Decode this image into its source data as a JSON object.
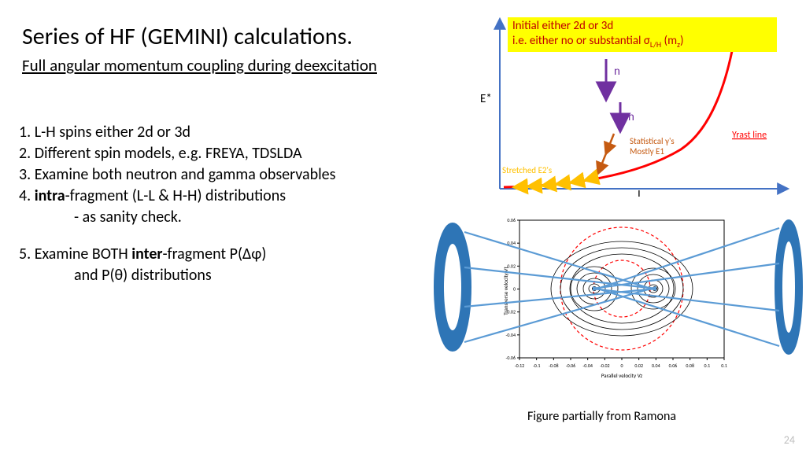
{
  "title": "Series of HF (GEMINI) calculations.",
  "subtitle": "Full angular momentum coupling during deexcitation",
  "bullets": {
    "b1": "1. L-H spins either 2d or 3d",
    "b2": "2. Different spin models, e.g. FREYA, TDSLDA",
    "b3": "3. Examine both neutron and gamma observables",
    "b4_pre": "4. ",
    "b4_bold": "intra",
    "b4_post": "-fragment (L-L & H-H) distributions",
    "b4_sub": "- as sanity check.",
    "b5_pre": "5. Examine BOTH ",
    "b5_bold": "inter",
    "b5_post": "-fragment P(Δφ)",
    "b5_sub": "and P(θ) distributions"
  },
  "yellowbox": {
    "line1": "Initial either 2d or 3d",
    "line2a": "i.e. either no or substantial σ",
    "line2_sub": "L/H",
    "line2b": " (m",
    "line2_sub2": "z",
    "line2c": ")"
  },
  "topchart": {
    "y_label": "E*",
    "x_label": "I",
    "n_label": "n",
    "stat_label": "Statistical γ's",
    "stat_label2": "Mostly E1",
    "stretched": "Stretched E2's",
    "yrast": "Yrast line",
    "axis_color": "#4472c4",
    "yrast_color": "#ff0000",
    "n_arrow_color": "#7030a0",
    "stat_color": "#c55a11",
    "stretched_color": "#ffc000"
  },
  "bottomchart": {
    "x_label": "Parallel velocity Vz",
    "y_label": "Transverse velocity Vt",
    "x_ticks": [
      "-0.12",
      "-0.1",
      "-0.08",
      "-0.06",
      "-0.04",
      "-0.02",
      "0",
      "0.02",
      "0.04",
      "0.06",
      "0.08",
      "0.1",
      "0.1"
    ],
    "y_ticks": [
      "-0.06",
      "-0.04",
      "-0.02",
      "0",
      "0.02",
      "0.04",
      "0.06"
    ],
    "tickfs": 6,
    "labelfs": 7,
    "lens_stroke": "#2e75b6",
    "lens_fill": "#2e75b6",
    "plot_border": "#000000",
    "contour_color": "#000000",
    "dashed_color": "#ff0000"
  },
  "caption": "Figure partially from Ramona",
  "pageno": "24"
}
